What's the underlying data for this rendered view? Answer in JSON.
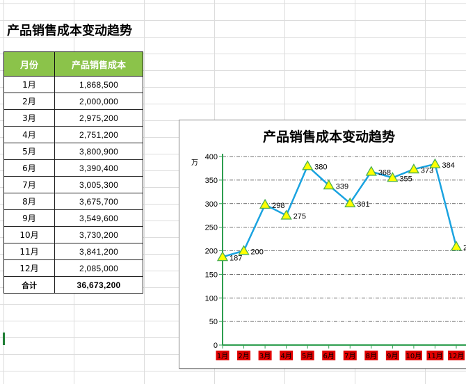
{
  "sheet": {
    "title": "产品销售成本变动趋势",
    "table": {
      "headers": [
        "月份",
        "产品销售成本"
      ],
      "rows": [
        [
          "1月",
          "1,868,500"
        ],
        [
          "2月",
          "2,000,000"
        ],
        [
          "3月",
          "2,975,200"
        ],
        [
          "4月",
          "2,751,200"
        ],
        [
          "5月",
          "3,800,900"
        ],
        [
          "6月",
          "3,390,400"
        ],
        [
          "7月",
          "3,005,300"
        ],
        [
          "8月",
          "3,675,700"
        ],
        [
          "9月",
          "3,549,600"
        ],
        [
          "10月",
          "3,730,200"
        ],
        [
          "11月",
          "3,841,200"
        ],
        [
          "12月",
          "2,085,000"
        ]
      ],
      "total": [
        "合计",
        "36,673,200"
      ]
    }
  },
  "chart_data": {
    "type": "line",
    "title": "产品销售成本变动趋势",
    "ylabel": "万",
    "xlabel": "",
    "categories": [
      "1月",
      "2月",
      "3月",
      "4月",
      "5月",
      "6月",
      "7月",
      "8月",
      "9月",
      "10月",
      "11月",
      "12月"
    ],
    "series": [
      {
        "values": [
          187,
          200,
          298,
          275,
          380,
          339,
          301,
          368,
          355,
          373,
          384,
          209
        ]
      }
    ],
    "ylim": [
      0,
      400
    ],
    "yticks": [
      0,
      50,
      100,
      150,
      200,
      250,
      300,
      350,
      400
    ],
    "grid": "horizontal dash-dot",
    "line_color": "#1aa3e0",
    "marker": "triangle",
    "marker_fill": "#ffff00",
    "marker_stroke": "#4caf50",
    "axis_color": "#2e9e4f",
    "category_label_bg": "#e00000"
  }
}
